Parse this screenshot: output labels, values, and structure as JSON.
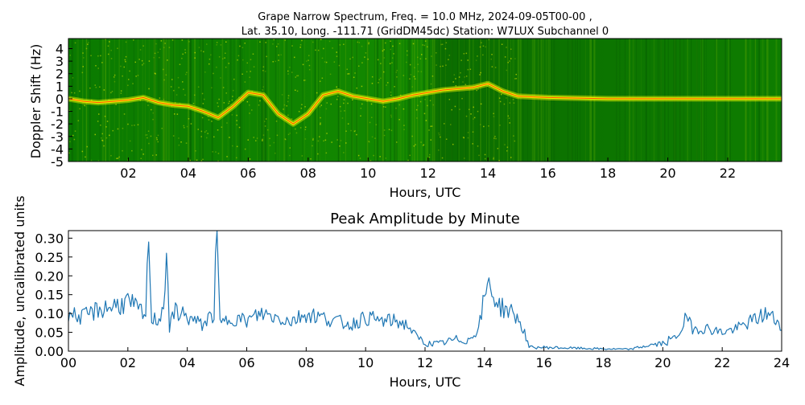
{
  "figure": {
    "title_line1": "Grape Narrow Spectrum, Freq. = 10.0 MHz, 2024-09-05T00-00 ,",
    "title_line2": "Lat.  35.10, Long. -111.71 (GridDM45dc) Station: W7LUX Subchannel 0"
  },
  "chart_data": [
    {
      "type": "heatmap",
      "title": "",
      "xlabel": "Hours, UTC",
      "ylabel": "Doppler Shift (Hz)",
      "xlim": [
        0,
        23.8
      ],
      "ylim": [
        -5,
        4.8
      ],
      "x_ticks": [
        2,
        4,
        6,
        8,
        10,
        12,
        14,
        16,
        18,
        20,
        22
      ],
      "x_tick_labels": [
        "02",
        "04",
        "06",
        "08",
        "10",
        "12",
        "14",
        "16",
        "18",
        "20",
        "22"
      ],
      "y_ticks": [
        4,
        3,
        2,
        1,
        0,
        -1,
        -2,
        -3,
        -4,
        -5
      ],
      "y_tick_labels": [
        "4",
        "3",
        "2",
        "1",
        "0",
        "-1",
        "-2",
        "-3",
        "-4",
        "-5"
      ],
      "colors": {
        "background": "#0a7a00",
        "mid": "#4aa000",
        "signal": "#f4f400",
        "peak": "#ff2a00"
      },
      "doppler_trace": [
        [
          0.0,
          0.0
        ],
        [
          0.5,
          -0.2
        ],
        [
          1.0,
          -0.3
        ],
        [
          1.5,
          -0.2
        ],
        [
          2.0,
          -0.1
        ],
        [
          2.5,
          0.1
        ],
        [
          3.0,
          -0.3
        ],
        [
          3.5,
          -0.5
        ],
        [
          4.0,
          -0.6
        ],
        [
          4.5,
          -1.0
        ],
        [
          5.0,
          -1.5
        ],
        [
          5.5,
          -0.6
        ],
        [
          6.0,
          0.5
        ],
        [
          6.5,
          0.3
        ],
        [
          7.0,
          -1.2
        ],
        [
          7.5,
          -2.0
        ],
        [
          8.0,
          -1.2
        ],
        [
          8.5,
          0.3
        ],
        [
          9.0,
          0.6
        ],
        [
          9.5,
          0.2
        ],
        [
          10.0,
          0.0
        ],
        [
          10.5,
          -0.2
        ],
        [
          11.0,
          0.0
        ],
        [
          11.5,
          0.3
        ],
        [
          12.0,
          0.5
        ],
        [
          12.5,
          0.7
        ],
        [
          13.0,
          0.8
        ],
        [
          13.5,
          0.9
        ],
        [
          14.0,
          1.2
        ],
        [
          14.5,
          0.6
        ],
        [
          15.0,
          0.2
        ],
        [
          16.0,
          0.1
        ],
        [
          18.0,
          0.0
        ],
        [
          20.0,
          0.0
        ],
        [
          22.0,
          0.0
        ],
        [
          23.8,
          0.0
        ]
      ]
    },
    {
      "type": "line",
      "title": "Peak Amplitude by Minute",
      "xlabel": "Hours, UTC",
      "ylabel": "Amplitude, uncalibrated units",
      "xlim": [
        0,
        24
      ],
      "ylim": [
        0,
        0.32
      ],
      "x_ticks": [
        0,
        2,
        4,
        6,
        8,
        10,
        12,
        14,
        16,
        18,
        20,
        22,
        24
      ],
      "x_tick_labels": [
        "00",
        "02",
        "04",
        "06",
        "08",
        "10",
        "12",
        "14",
        "16",
        "18",
        "20",
        "22",
        "24"
      ],
      "y_ticks": [
        0,
        0.05,
        0.1,
        0.15,
        0.2,
        0.25,
        0.3
      ],
      "y_tick_labels": [
        "0.00",
        "0.05",
        "0.10",
        "0.15",
        "0.20",
        "0.25",
        "0.30"
      ],
      "line_color": "#1f77b4",
      "series": [
        {
          "x": [
            0.0,
            0.5,
            1.0,
            1.5,
            2.0,
            2.5,
            2.6,
            2.7,
            2.8,
            3.0,
            3.2,
            3.3,
            3.4,
            3.6,
            4.0,
            4.5,
            4.9,
            5.0,
            5.1,
            5.5,
            6.0,
            6.5,
            7.0,
            7.5,
            8.0,
            8.5,
            9.0,
            9.5,
            10.0,
            10.5,
            11.0,
            11.4,
            11.7,
            12.0,
            12.5,
            13.0,
            13.5,
            13.8,
            14.1,
            14.5,
            15.0,
            15.3,
            15.5,
            16.0,
            17.0,
            18.0,
            18.9,
            19.5,
            20.0,
            20.5,
            20.8,
            21.0,
            21.5,
            22.0,
            22.5,
            23.0,
            23.5,
            24.0
          ],
          "y": [
            0.1,
            0.09,
            0.11,
            0.12,
            0.13,
            0.1,
            0.09,
            0.29,
            0.09,
            0.08,
            0.12,
            0.26,
            0.06,
            0.11,
            0.09,
            0.07,
            0.1,
            0.32,
            0.07,
            0.09,
            0.08,
            0.1,
            0.09,
            0.08,
            0.1,
            0.09,
            0.08,
            0.07,
            0.09,
            0.08,
            0.08,
            0.07,
            0.04,
            0.02,
            0.02,
            0.03,
            0.03,
            0.06,
            0.18,
            0.12,
            0.1,
            0.06,
            0.01,
            0.01,
            0.008,
            0.006,
            0.005,
            0.015,
            0.02,
            0.04,
            0.09,
            0.06,
            0.06,
            0.05,
            0.06,
            0.08,
            0.1,
            0.07
          ]
        }
      ]
    }
  ]
}
